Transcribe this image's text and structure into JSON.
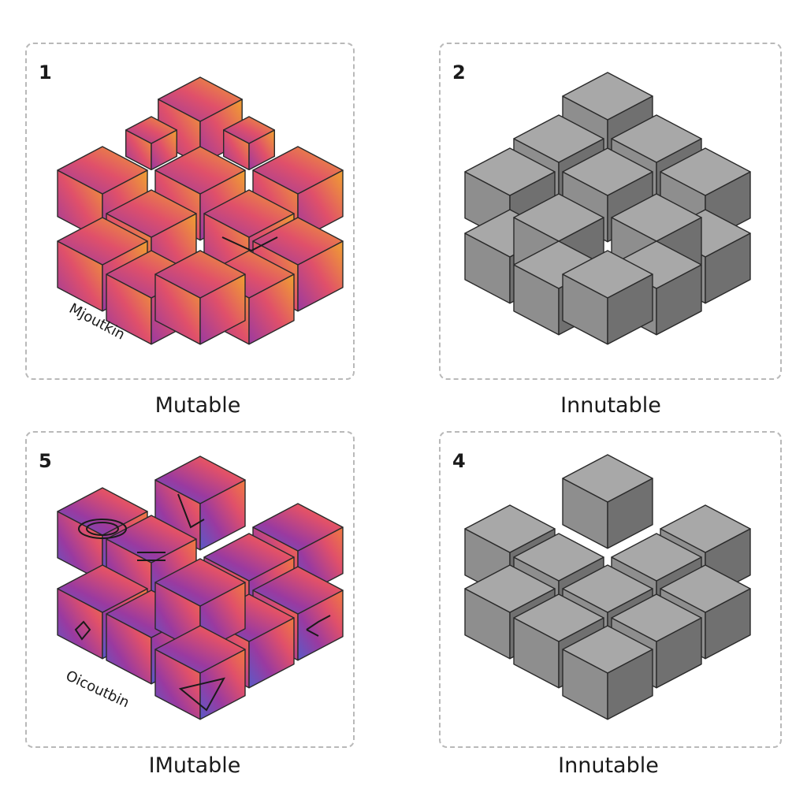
{
  "panels": [
    {
      "number": "1",
      "caption": "Mutable",
      "annotation": "Mjoutkin",
      "style": "gradient"
    },
    {
      "number": "2",
      "caption": "Innutable",
      "style": "gray"
    },
    {
      "number": "5",
      "caption": "IMutable",
      "annotation": "Oicoutbin",
      "style": "gradient"
    },
    {
      "number": "4",
      "caption": "Innutable",
      "style": "gray"
    }
  ],
  "colors": {
    "gradient_top": "#f0a030",
    "gradient_mid": "#e0506a",
    "gradient_bottom": "#9a3aa0",
    "gradient_blue": "#5a5ac8",
    "gray_top": "#a8a8a8",
    "gray_left": "#8e8e8e",
    "gray_right": "#707070",
    "edge": "#2a2a2a",
    "dash_border": "#b9b9b9"
  }
}
